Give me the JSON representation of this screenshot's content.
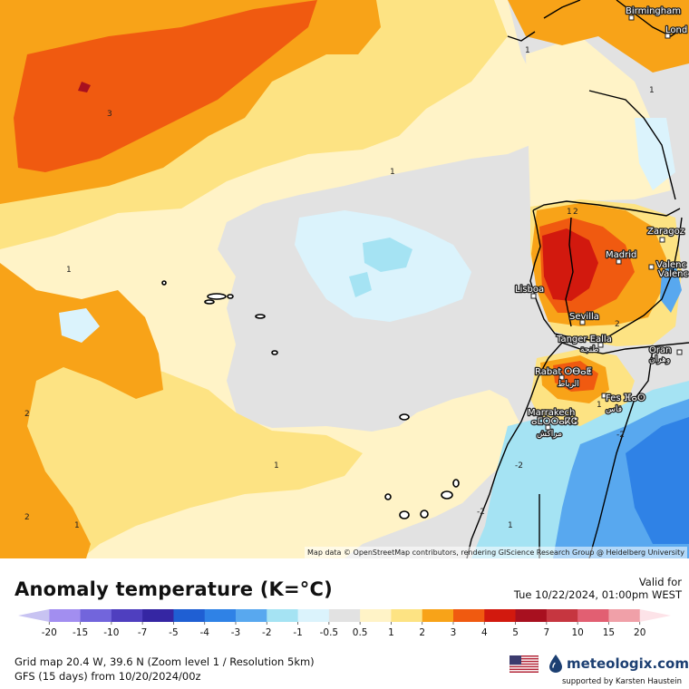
{
  "map": {
    "attribution": "Map data © OpenStreetMap contributors, rendering GIScience Research Group @ Heidelberg University",
    "cities": [
      {
        "name": "Birmingham"
      },
      {
        "name": "Lond"
      },
      {
        "name": "Zaragoz"
      },
      {
        "name": "Madrid"
      },
      {
        "name": "Valenc"
      },
      {
        "name": "Valenc"
      },
      {
        "name": "Lisboa"
      },
      {
        "name": "Sevilla"
      },
      {
        "name": "Tanger Ealla"
      },
      {
        "name": "طنجة"
      },
      {
        "name": "Oran"
      },
      {
        "name": "وهران"
      },
      {
        "name": "Rabat ⵔⴱⴰⵟ"
      },
      {
        "name": "الرباط"
      },
      {
        "name": "Fes ⴼⴰⵙ"
      },
      {
        "name": "فاس"
      },
      {
        "name": "Marrakech"
      },
      {
        "name": "ⴰⵎⵔⵔⴰⴽⵛ"
      },
      {
        "name": "مراكش"
      }
    ],
    "contour_labels": [
      "3",
      "1",
      "1",
      "2",
      "1",
      "2",
      "1",
      "1",
      "1",
      "2",
      "-2",
      "-2",
      "1",
      "1",
      "1",
      "2",
      "-2"
    ]
  },
  "legend": {
    "title": "Anomaly temperature (K=°C)",
    "valid_label": "Valid for",
    "valid_time": "Tue 10/22/2024, 01:00pm WEST",
    "ticks": [
      "-20",
      "-15",
      "-10",
      "-7",
      "-5",
      "-4",
      "-3",
      "-2",
      "-1",
      "-0.5",
      "0.5",
      "1",
      "2",
      "3",
      "4",
      "5",
      "7",
      "10",
      "15",
      "20"
    ],
    "colors": [
      "#c8c3f2",
      "#a28ef0",
      "#7265dc",
      "#4f3fbf",
      "#3526a3",
      "#1f5fd3",
      "#2f82e6",
      "#58a8ef",
      "#a5e3f3",
      "#dbf3fc",
      "#e2e2e2",
      "#fff3c7",
      "#fde383",
      "#f8a318",
      "#f05a10",
      "#d2190e",
      "#a8101f",
      "#c63640",
      "#e25f72",
      "#f0a0a8",
      "#fde3e8"
    ]
  },
  "footer": {
    "grid_info": "Grid map 20.4 W, 39.6 N (Zoom level 1 / Resolution 5km)",
    "model_info": "GFS (15 days) from  10/20/2024/00z",
    "brand": "meteologix.com",
    "support": "supported by Karsten Haustein"
  }
}
